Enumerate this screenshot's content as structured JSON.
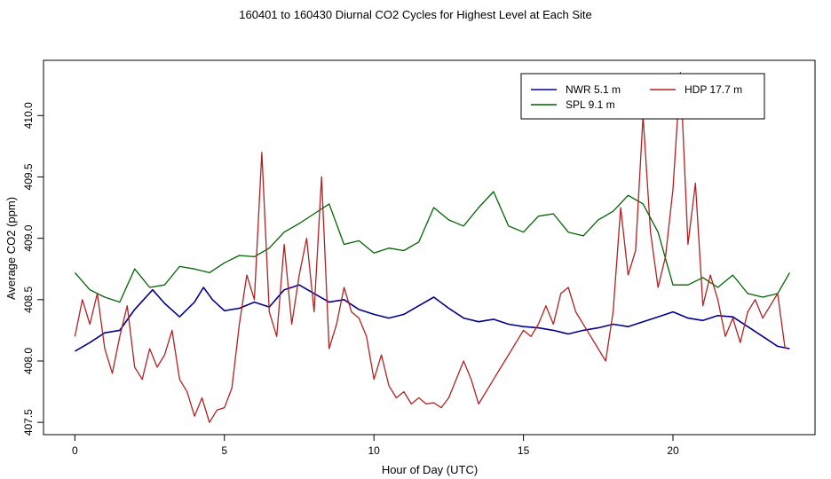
{
  "chart_data": {
    "type": "line",
    "title": "160401  to  160430 Diurnal CO2 Cycles for Highest Level at Each Site",
    "xlabel": "Hour of Day (UTC)",
    "ylabel": "Average CO2 (ppm)",
    "xlim": [
      -1.05,
      24.75
    ],
    "ylim": [
      407.4,
      410.45
    ],
    "xticks": [
      0,
      5,
      10,
      15,
      20
    ],
    "xtick_labels": [
      "0",
      "5",
      "10",
      "15",
      "20"
    ],
    "yticks": [
      407.5,
      408.0,
      408.5,
      409.0,
      409.5,
      410.0
    ],
    "ytick_labels": [
      "407.5",
      "408.0",
      "408.5",
      "409.0",
      "409.5",
      "410.0"
    ],
    "legend_position": "top-right",
    "series": [
      {
        "name": "NWR   5.1 m",
        "color": "#00008b",
        "x": [
          0,
          0.5,
          1,
          1.5,
          2,
          2.3,
          2.6,
          3,
          3.5,
          4,
          4.3,
          4.6,
          5,
          5.5,
          6,
          6.5,
          7,
          7.5,
          8,
          8.5,
          9,
          9.5,
          10,
          10.5,
          11,
          11.5,
          12,
          12.5,
          13,
          13.5,
          14,
          14.5,
          15,
          15.5,
          16,
          16.5,
          17,
          17.5,
          18,
          18.5,
          19,
          19.5,
          20,
          20.5,
          21,
          21.5,
          22,
          22.5,
          23,
          23.5,
          23.9
        ],
        "values": [
          408.08,
          408.15,
          408.23,
          408.25,
          408.42,
          408.5,
          408.58,
          408.47,
          408.36,
          408.48,
          408.6,
          408.5,
          408.41,
          408.43,
          408.48,
          408.44,
          408.58,
          408.62,
          408.55,
          408.48,
          408.5,
          408.42,
          408.38,
          408.35,
          408.38,
          408.45,
          408.52,
          408.43,
          408.35,
          408.32,
          408.34,
          408.3,
          408.28,
          408.27,
          408.25,
          408.22,
          408.25,
          408.27,
          408.3,
          408.28,
          408.32,
          408.36,
          408.4,
          408.35,
          408.33,
          408.37,
          408.36,
          408.28,
          408.2,
          408.12,
          408.1
        ]
      },
      {
        "name": "SPL   9.1 m",
        "color": "#006400",
        "x": [
          0,
          0.5,
          1,
          1.5,
          2,
          2.5,
          3,
          3.5,
          4,
          4.5,
          5,
          5.5,
          6,
          6.5,
          7,
          7.5,
          8,
          8.5,
          9,
          9.5,
          10,
          10.5,
          11,
          11.5,
          12,
          12.5,
          13,
          13.5,
          14,
          14.5,
          15,
          15.5,
          16,
          16.5,
          17,
          17.5,
          18,
          18.5,
          19,
          19.5,
          20,
          20.5,
          21,
          21.5,
          22,
          22.5,
          23,
          23.5,
          23.9
        ],
        "values": [
          408.72,
          408.58,
          408.52,
          408.48,
          408.75,
          408.6,
          408.62,
          408.77,
          408.75,
          408.72,
          408.8,
          408.86,
          408.85,
          408.92,
          409.05,
          409.12,
          409.2,
          409.28,
          408.95,
          408.98,
          408.88,
          408.92,
          408.9,
          408.97,
          409.25,
          409.15,
          409.1,
          409.25,
          409.38,
          409.1,
          409.05,
          409.18,
          409.2,
          409.05,
          409.02,
          409.15,
          409.22,
          409.35,
          409.28,
          409.05,
          408.62,
          408.62,
          408.68,
          408.6,
          408.7,
          408.55,
          408.52,
          408.55,
          408.72
        ]
      },
      {
        "name": "HDP   17.7 m",
        "color": "#b22222",
        "x": [
          0,
          0.25,
          0.5,
          0.75,
          1,
          1.25,
          1.5,
          1.75,
          2,
          2.25,
          2.5,
          2.75,
          3,
          3.25,
          3.5,
          3.75,
          4,
          4.25,
          4.5,
          4.75,
          5,
          5.25,
          5.5,
          5.75,
          6,
          6.25,
          6.5,
          6.75,
          7,
          7.25,
          7.5,
          7.75,
          8,
          8.25,
          8.5,
          8.75,
          9,
          9.25,
          9.5,
          9.75,
          10,
          10.25,
          10.5,
          10.75,
          11,
          11.25,
          11.5,
          11.75,
          12,
          12.25,
          12.5,
          12.75,
          13,
          13.25,
          13.5,
          13.75,
          14,
          14.25,
          14.5,
          14.75,
          15,
          15.25,
          15.5,
          15.75,
          16,
          16.25,
          16.5,
          16.75,
          17,
          17.25,
          17.5,
          17.75,
          18,
          18.25,
          18.5,
          18.75,
          19,
          19.25,
          19.5,
          19.75,
          20,
          20.25,
          20.5,
          20.75,
          21,
          21.25,
          21.5,
          21.75,
          22,
          22.25,
          22.5,
          22.75,
          23,
          23.25,
          23.5,
          23.75
        ],
        "values": [
          408.2,
          408.5,
          408.3,
          408.55,
          408.1,
          407.9,
          408.2,
          408.45,
          407.95,
          407.85,
          408.1,
          407.95,
          408.05,
          408.25,
          407.85,
          407.75,
          407.55,
          407.7,
          407.5,
          407.6,
          407.62,
          407.78,
          408.3,
          408.7,
          408.5,
          409.7,
          408.4,
          408.2,
          408.95,
          408.3,
          408.7,
          409.0,
          408.4,
          409.5,
          408.1,
          408.3,
          408.6,
          408.4,
          408.35,
          408.2,
          407.85,
          408.05,
          407.8,
          407.7,
          407.75,
          407.65,
          407.7,
          407.65,
          407.66,
          407.62,
          407.7,
          407.85,
          408.0,
          407.85,
          407.65,
          407.75,
          407.85,
          407.95,
          408.05,
          408.15,
          408.25,
          408.2,
          408.3,
          408.45,
          408.3,
          408.55,
          408.6,
          408.4,
          408.3,
          408.2,
          408.1,
          408.0,
          408.4,
          409.25,
          408.7,
          408.9,
          410.0,
          409.05,
          408.6,
          408.85,
          409.4,
          410.35,
          408.95,
          409.45,
          408.45,
          408.7,
          408.5,
          408.2,
          408.35,
          408.15,
          408.4,
          408.5,
          408.35,
          408.45,
          408.55,
          408.1
        ]
      }
    ]
  }
}
